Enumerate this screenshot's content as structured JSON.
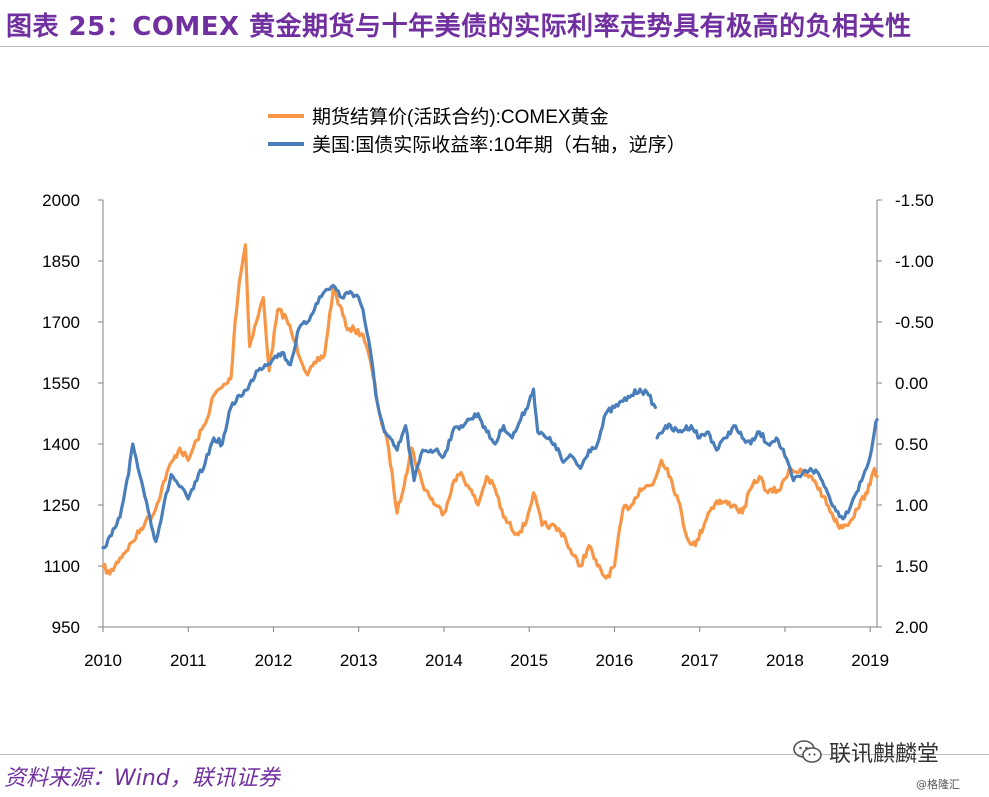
{
  "figure": {
    "title": "图表 25：COMEX 黄金期货与十年美债的实际利率走势具有极高的负相关性",
    "source": "资料来源：Wind，联讯证券",
    "wechat_account": "联讯麒麟堂",
    "watermark": "@格隆汇"
  },
  "chart_data": {
    "type": "line",
    "x_ticks": [
      "2010",
      "2011",
      "2012",
      "2013",
      "2014",
      "2015",
      "2016",
      "2017",
      "2018",
      "2019"
    ],
    "xlim": [
      2010.0,
      2019.08
    ],
    "y_left": {
      "lim": [
        950,
        2000
      ],
      "ticks": [
        "950",
        "1100",
        "1250",
        "1400",
        "1550",
        "1700",
        "1850",
        "2000"
      ]
    },
    "y_right": {
      "lim": [
        -1.5,
        2.0
      ],
      "inverted": true,
      "ticks": [
        "-1.50",
        "-1.00",
        "-0.50",
        "0.00",
        "0.50",
        "1.00",
        "1.50",
        "2.00"
      ]
    },
    "grid": false,
    "legend_position": "top-center",
    "series": [
      {
        "name": "期货结算价(活跃合约):COMEX黄金",
        "axis": "left",
        "color": "#f79646",
        "points": [
          [
            2010.0,
            1100
          ],
          [
            2010.08,
            1080
          ],
          [
            2010.2,
            1120
          ],
          [
            2010.35,
            1160
          ],
          [
            2010.5,
            1210
          ],
          [
            2010.6,
            1230
          ],
          [
            2010.75,
            1330
          ],
          [
            2010.9,
            1390
          ],
          [
            2011.0,
            1360
          ],
          [
            2011.1,
            1410
          ],
          [
            2011.2,
            1450
          ],
          [
            2011.3,
            1520
          ],
          [
            2011.4,
            1540
          ],
          [
            2011.5,
            1560
          ],
          [
            2011.55,
            1700
          ],
          [
            2011.6,
            1800
          ],
          [
            2011.67,
            1890
          ],
          [
            2011.72,
            1640
          ],
          [
            2011.8,
            1700
          ],
          [
            2011.88,
            1760
          ],
          [
            2011.95,
            1580
          ],
          [
            2012.05,
            1730
          ],
          [
            2012.15,
            1710
          ],
          [
            2012.25,
            1650
          ],
          [
            2012.4,
            1570
          ],
          [
            2012.5,
            1600
          ],
          [
            2012.6,
            1620
          ],
          [
            2012.7,
            1780
          ],
          [
            2012.78,
            1740
          ],
          [
            2012.85,
            1690
          ],
          [
            2012.95,
            1680
          ],
          [
            2013.05,
            1670
          ],
          [
            2013.15,
            1590
          ],
          [
            2013.25,
            1470
          ],
          [
            2013.35,
            1390
          ],
          [
            2013.45,
            1230
          ],
          [
            2013.55,
            1320
          ],
          [
            2013.62,
            1390
          ],
          [
            2013.75,
            1300
          ],
          [
            2013.9,
            1250
          ],
          [
            2014.0,
            1230
          ],
          [
            2014.1,
            1300
          ],
          [
            2014.2,
            1330
          ],
          [
            2014.3,
            1290
          ],
          [
            2014.4,
            1250
          ],
          [
            2014.5,
            1320
          ],
          [
            2014.6,
            1290
          ],
          [
            2014.7,
            1220
          ],
          [
            2014.85,
            1180
          ],
          [
            2014.95,
            1200
          ],
          [
            2015.05,
            1280
          ],
          [
            2015.15,
            1200
          ],
          [
            2015.25,
            1200
          ],
          [
            2015.4,
            1180
          ],
          [
            2015.5,
            1130
          ],
          [
            2015.6,
            1100
          ],
          [
            2015.7,
            1150
          ],
          [
            2015.8,
            1100
          ],
          [
            2015.9,
            1070
          ],
          [
            2016.0,
            1100
          ],
          [
            2016.1,
            1240
          ],
          [
            2016.2,
            1250
          ],
          [
            2016.3,
            1290
          ],
          [
            2016.45,
            1300
          ],
          [
            2016.55,
            1360
          ],
          [
            2016.62,
            1340
          ],
          [
            2016.75,
            1260
          ],
          [
            2016.85,
            1170
          ],
          [
            2016.95,
            1150
          ],
          [
            2017.1,
            1230
          ],
          [
            2017.2,
            1260
          ],
          [
            2017.4,
            1250
          ],
          [
            2017.5,
            1230
          ],
          [
            2017.6,
            1290
          ],
          [
            2017.7,
            1320
          ],
          [
            2017.8,
            1280
          ],
          [
            2017.95,
            1290
          ],
          [
            2018.05,
            1340
          ],
          [
            2018.2,
            1330
          ],
          [
            2018.35,
            1310
          ],
          [
            2018.45,
            1270
          ],
          [
            2018.55,
            1230
          ],
          [
            2018.62,
            1200
          ],
          [
            2018.72,
            1200
          ],
          [
            2018.85,
            1240
          ],
          [
            2018.95,
            1280
          ],
          [
            2019.0,
            1300
          ],
          [
            2019.05,
            1340
          ],
          [
            2019.08,
            1320
          ]
        ]
      },
      {
        "name": "美国:国债实际收益率:10年期（右轴，逆序）",
        "axis": "right",
        "color": "#4a7ebb",
        "points": [
          [
            2010.0,
            1.35
          ],
          [
            2010.1,
            1.25
          ],
          [
            2010.2,
            1.1
          ],
          [
            2010.3,
            0.75
          ],
          [
            2010.35,
            0.5
          ],
          [
            2010.45,
            0.8
          ],
          [
            2010.55,
            1.1
          ],
          [
            2010.62,
            1.3
          ],
          [
            2010.7,
            1.05
          ],
          [
            2010.8,
            0.75
          ],
          [
            2010.9,
            0.85
          ],
          [
            2011.0,
            0.95
          ],
          [
            2011.1,
            0.8
          ],
          [
            2011.2,
            0.65
          ],
          [
            2011.3,
            0.45
          ],
          [
            2011.4,
            0.5
          ],
          [
            2011.5,
            0.2
          ],
          [
            2011.6,
            0.1
          ],
          [
            2011.7,
            0.05
          ],
          [
            2011.8,
            -0.1
          ],
          [
            2011.9,
            -0.15
          ],
          [
            2012.0,
            -0.2
          ],
          [
            2012.1,
            -0.25
          ],
          [
            2012.2,
            -0.15
          ],
          [
            2012.3,
            -0.45
          ],
          [
            2012.4,
            -0.5
          ],
          [
            2012.5,
            -0.65
          ],
          [
            2012.6,
            -0.75
          ],
          [
            2012.7,
            -0.8
          ],
          [
            2012.8,
            -0.7
          ],
          [
            2012.9,
            -0.75
          ],
          [
            2013.0,
            -0.7
          ],
          [
            2013.05,
            -0.6
          ],
          [
            2013.1,
            -0.4
          ],
          [
            2013.15,
            -0.2
          ],
          [
            2013.2,
            0.1
          ],
          [
            2013.3,
            0.4
          ],
          [
            2013.45,
            0.55
          ],
          [
            2013.55,
            0.35
          ],
          [
            2013.65,
            0.8
          ],
          [
            2013.75,
            0.55
          ],
          [
            2013.9,
            0.55
          ],
          [
            2014.0,
            0.6
          ],
          [
            2014.1,
            0.4
          ],
          [
            2014.2,
            0.35
          ],
          [
            2014.3,
            0.3
          ],
          [
            2014.4,
            0.25
          ],
          [
            2014.5,
            0.4
          ],
          [
            2014.6,
            0.5
          ],
          [
            2014.7,
            0.35
          ],
          [
            2014.8,
            0.45
          ],
          [
            2014.9,
            0.3
          ],
          [
            2015.0,
            0.15
          ],
          [
            2015.05,
            0.05
          ],
          [
            2015.1,
            0.4
          ],
          [
            2015.2,
            0.45
          ],
          [
            2015.3,
            0.5
          ],
          [
            2015.4,
            0.65
          ],
          [
            2015.5,
            0.6
          ],
          [
            2015.6,
            0.7
          ],
          [
            2015.7,
            0.55
          ],
          [
            2015.8,
            0.5
          ],
          [
            2015.9,
            0.25
          ],
          [
            2016.0,
            0.2
          ],
          [
            2016.1,
            0.15
          ],
          [
            2016.2,
            0.1
          ],
          [
            2016.3,
            0.05
          ],
          [
            2016.4,
            0.1
          ],
          [
            2016.48,
            0.2
          ]
        ]
      },
      {
        "axis": "right",
        "color": "#4a7ebb",
        "points": [
          [
            2016.5,
            0.45
          ],
          [
            2016.6,
            0.35
          ],
          [
            2016.75,
            0.4
          ],
          [
            2016.9,
            0.35
          ],
          [
            2017.0,
            0.45
          ],
          [
            2017.1,
            0.4
          ],
          [
            2017.2,
            0.55
          ],
          [
            2017.3,
            0.45
          ],
          [
            2017.4,
            0.35
          ],
          [
            2017.5,
            0.45
          ],
          [
            2017.6,
            0.5
          ],
          [
            2017.7,
            0.4
          ],
          [
            2017.8,
            0.5
          ],
          [
            2017.9,
            0.45
          ],
          [
            2018.0,
            0.6
          ],
          [
            2018.1,
            0.8
          ],
          [
            2018.2,
            0.75
          ],
          [
            2018.3,
            0.7
          ],
          [
            2018.4,
            0.75
          ],
          [
            2018.5,
            0.9
          ],
          [
            2018.6,
            1.05
          ],
          [
            2018.7,
            1.1
          ],
          [
            2018.8,
            0.95
          ],
          [
            2018.9,
            0.8
          ],
          [
            2019.0,
            0.6
          ],
          [
            2019.05,
            0.4
          ],
          [
            2019.08,
            0.3
          ]
        ]
      }
    ]
  }
}
